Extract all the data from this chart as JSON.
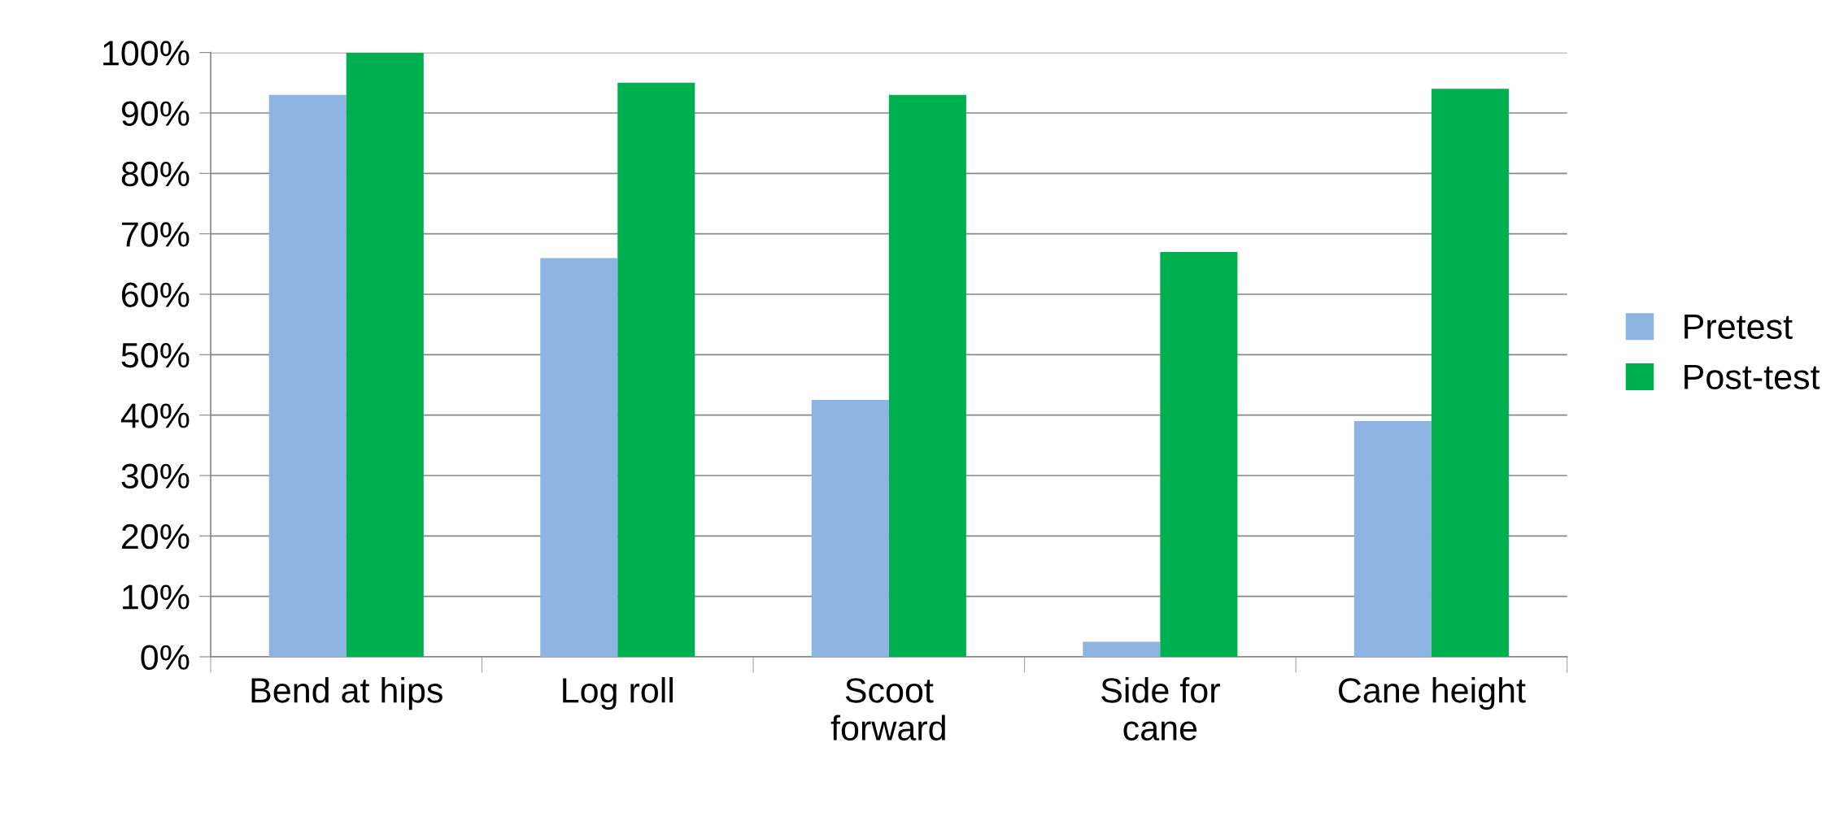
{
  "chart_data": {
    "type": "bar",
    "categories": [
      "Bend at hips",
      "Log roll",
      "Scoot\nforward",
      "Side for\ncane",
      "Cane height"
    ],
    "series": [
      {
        "name": "Pretest",
        "color": "#8eb4e3",
        "values": [
          93,
          66,
          42.5,
          2.5,
          39
        ]
      },
      {
        "name": "Post-test",
        "color": "#00b050",
        "values": [
          100,
          95,
          93,
          67,
          94
        ]
      }
    ],
    "ylim": [
      0,
      100
    ],
    "yticks": [
      {
        "value": 0,
        "label": "0%"
      },
      {
        "value": 10,
        "label": "10%"
      },
      {
        "value": 20,
        "label": "20%"
      },
      {
        "value": 30,
        "label": "30%"
      },
      {
        "value": 40,
        "label": "40%"
      },
      {
        "value": 50,
        "label": "50%"
      },
      {
        "value": 60,
        "label": "60%"
      },
      {
        "value": 70,
        "label": "70%"
      },
      {
        "value": 80,
        "label": "80%"
      },
      {
        "value": 90,
        "label": "90%"
      },
      {
        "value": 100,
        "label": "100%"
      }
    ],
    "grid": "y",
    "legend": "right"
  }
}
